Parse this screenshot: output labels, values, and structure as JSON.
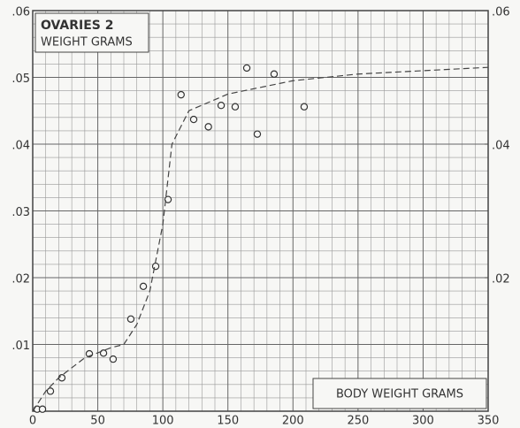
{
  "chart_data": {
    "type": "scatter",
    "title": "OVARIES 2",
    "ylabel": "WEIGHT GRAMS",
    "xlabel": "BODY WEIGHT GRAMS",
    "xlim": [
      0,
      350
    ],
    "xticks": [
      0,
      50,
      100,
      150,
      200,
      250,
      300,
      350
    ],
    "ylim": [
      0,
      0.06
    ],
    "yticks": [
      {
        "value": 0.01,
        "label": ".01"
      },
      {
        "value": 0.02,
        "label": ".02"
      },
      {
        "value": 0.03,
        "label": ".03"
      },
      {
        "value": 0.04,
        "label": ".04"
      },
      {
        "value": 0.05,
        "label": ".05"
      },
      {
        "value": 0.06,
        "label": ".06"
      }
    ],
    "y2lim": [
      0,
      0.06
    ],
    "y2ticks": [
      {
        "value": 0.02,
        "label": ".02"
      },
      {
        "value": 0.04,
        "label": ".04"
      },
      {
        "value": 0.06,
        "label": ".06"
      }
    ],
    "grid": true,
    "series": [
      {
        "color": "#333333",
        "x": [
          3.4,
          7.5,
          13.6,
          22.4,
          43.5,
          54.4,
          61.8,
          75.4,
          85,
          94.5,
          104,
          114,
          123.7,
          135,
          144.8,
          155.6,
          164.5,
          172.6,
          185.5,
          208.6
        ],
        "values": [
          0.0003,
          0.0003,
          0.003,
          0.005,
          0.0086,
          0.0087,
          0.0078,
          0.0138,
          0.0187,
          0.0217,
          0.0317,
          0.0474,
          0.0437,
          0.0426,
          0.0458,
          0.0456,
          0.0514,
          0.0415,
          0.0505,
          0.0456
        ]
      },
      {
        "color": "#444444",
        "line": true,
        "x": [
          0,
          10,
          20,
          40,
          60,
          70,
          80,
          90,
          100,
          107,
          120,
          150,
          200,
          250,
          300,
          350
        ],
        "values": [
          0,
          0.003,
          0.005,
          0.008,
          0.0095,
          0.01,
          0.013,
          0.018,
          0.028,
          0.04,
          0.045,
          0.0475,
          0.0495,
          0.0505,
          0.051,
          0.0515
        ]
      }
    ]
  }
}
